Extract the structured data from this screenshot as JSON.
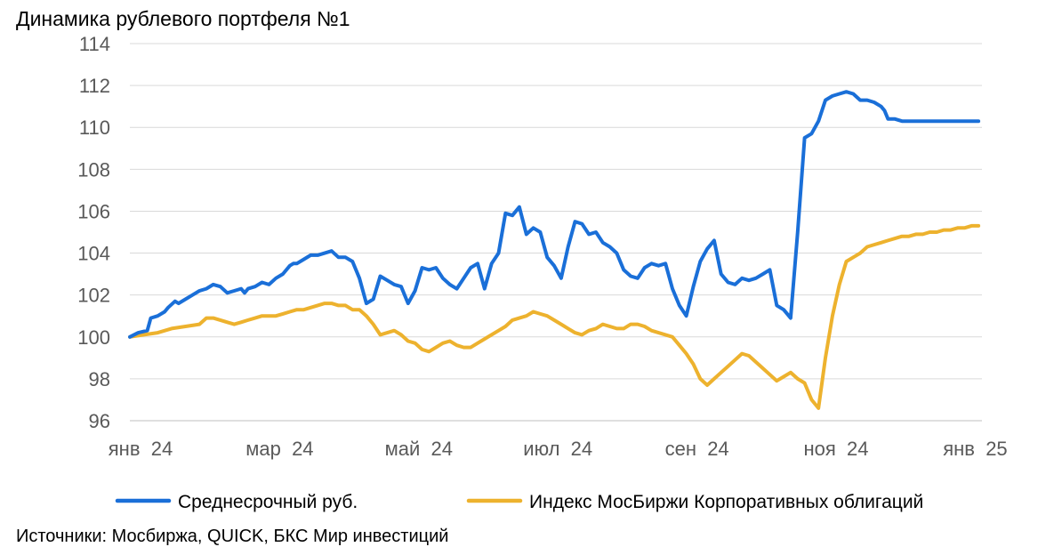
{
  "title": "Динамика рублевого портфеля №1",
  "source": "Источники: Мосбиржа, QUICK, БКС Мир инвестиций",
  "colors": {
    "series1": "#1a6fd8",
    "series2": "#edb22e",
    "grid": "#d9d9d9",
    "tick": "#595959"
  },
  "chart_data": {
    "type": "line",
    "title": "Динамика рублевого портфеля №1",
    "xlabel": "",
    "ylabel": "",
    "ylim": [
      96,
      114
    ],
    "yticks": [
      "96",
      "98",
      "100",
      "102",
      "104",
      "106",
      "108",
      "110",
      "112",
      "114"
    ],
    "xlim": [
      0,
      12.25
    ],
    "xticks": [
      {
        "x": 0,
        "label": "янв  24"
      },
      {
        "x": 2,
        "label": "мар  24"
      },
      {
        "x": 4,
        "label": "май  24"
      },
      {
        "x": 6,
        "label": "июл  24"
      },
      {
        "x": 8,
        "label": "сен  24"
      },
      {
        "x": 10,
        "label": "ноя  24"
      },
      {
        "x": 12,
        "label": "янв  25"
      }
    ],
    "grid": true,
    "legend": "bottom",
    "series": [
      {
        "name": "Среднесрочный руб.",
        "color": "#1a6fd8",
        "x": [
          0,
          0.12,
          0.25,
          0.3,
          0.4,
          0.5,
          0.55,
          0.65,
          0.7,
          0.8,
          0.9,
          1.0,
          1.1,
          1.2,
          1.3,
          1.4,
          1.5,
          1.6,
          1.65,
          1.7,
          1.8,
          1.9,
          2.0,
          2.1,
          2.2,
          2.3,
          2.35,
          2.4,
          2.5,
          2.6,
          2.7,
          2.8,
          2.9,
          3.0,
          3.1,
          3.2,
          3.3,
          3.4,
          3.5,
          3.6,
          3.7,
          3.8,
          3.9,
          4.0,
          4.1,
          4.2,
          4.3,
          4.4,
          4.5,
          4.6,
          4.7,
          4.8,
          4.9,
          5.0,
          5.1,
          5.2,
          5.3,
          5.4,
          5.5,
          5.6,
          5.7,
          5.8,
          5.9,
          6.0,
          6.1,
          6.2,
          6.3,
          6.4,
          6.5,
          6.6,
          6.7,
          6.8,
          6.9,
          7.0,
          7.1,
          7.2,
          7.3,
          7.4,
          7.5,
          7.6,
          7.7,
          7.8,
          7.9,
          8.0,
          8.1,
          8.2,
          8.3,
          8.4,
          8.5,
          8.6,
          8.7,
          8.8,
          8.9,
          9.0,
          9.1,
          9.2,
          9.3,
          9.4,
          9.5,
          9.6,
          9.7,
          9.8,
          9.9,
          10.0,
          10.1,
          10.2,
          10.3,
          10.4,
          10.5,
          10.6,
          10.7,
          10.8,
          10.85,
          10.9,
          11.0,
          11.1,
          11.2,
          11.3,
          11.4,
          11.5,
          11.6,
          11.7,
          11.8,
          11.9,
          12.0,
          12.1,
          12.2
        ],
        "values": [
          100.0,
          100.2,
          100.3,
          100.9,
          101.0,
          101.2,
          101.4,
          101.7,
          101.6,
          101.8,
          102.0,
          102.2,
          102.3,
          102.5,
          102.4,
          102.1,
          102.2,
          102.3,
          102.1,
          102.3,
          102.4,
          102.6,
          102.5,
          102.8,
          103.0,
          103.4,
          103.5,
          103.5,
          103.7,
          103.9,
          103.9,
          104.0,
          104.1,
          103.8,
          103.8,
          103.6,
          102.8,
          101.6,
          101.8,
          102.9,
          102.7,
          102.5,
          102.4,
          101.6,
          102.2,
          103.3,
          103.2,
          103.3,
          102.8,
          102.5,
          102.3,
          102.8,
          103.3,
          103.5,
          102.3,
          103.5,
          104.0,
          105.9,
          105.8,
          106.2,
          104.9,
          105.2,
          105.0,
          103.8,
          103.4,
          102.8,
          104.3,
          105.5,
          105.4,
          104.9,
          105.0,
          104.5,
          104.3,
          104.0,
          103.2,
          102.9,
          102.8,
          103.3,
          103.5,
          103.4,
          103.5,
          102.3,
          101.5,
          101.0,
          102.4,
          103.6,
          104.2,
          104.6,
          103.0,
          102.6,
          102.5,
          102.8,
          102.7,
          102.8,
          103.0,
          103.2,
          101.5,
          101.3,
          100.9,
          105.0,
          109.5,
          109.7,
          110.3,
          111.3,
          111.5,
          111.6,
          111.7,
          111.6,
          111.3,
          111.3,
          111.2,
          111.0,
          110.8,
          110.4,
          110.4,
          110.3,
          110.3,
          110.3,
          110.3,
          110.3,
          110.3,
          110.3,
          110.3,
          110.3,
          110.3,
          110.3,
          110.3
        ]
      },
      {
        "name": "Индекс МосБиржи Корпоративных облигаций",
        "color": "#edb22e",
        "x": [
          0,
          0.2,
          0.4,
          0.6,
          0.8,
          1.0,
          1.1,
          1.2,
          1.3,
          1.4,
          1.5,
          1.6,
          1.7,
          1.8,
          1.9,
          2.0,
          2.1,
          2.2,
          2.3,
          2.4,
          2.5,
          2.6,
          2.7,
          2.8,
          2.9,
          3.0,
          3.1,
          3.2,
          3.3,
          3.4,
          3.5,
          3.6,
          3.7,
          3.8,
          3.9,
          4.0,
          4.1,
          4.2,
          4.3,
          4.4,
          4.5,
          4.6,
          4.7,
          4.8,
          4.9,
          5.0,
          5.1,
          5.2,
          5.3,
          5.4,
          5.5,
          5.6,
          5.7,
          5.8,
          5.9,
          6.0,
          6.1,
          6.2,
          6.3,
          6.4,
          6.5,
          6.6,
          6.7,
          6.8,
          6.9,
          7.0,
          7.1,
          7.2,
          7.3,
          7.4,
          7.5,
          7.6,
          7.7,
          7.8,
          7.9,
          8.0,
          8.1,
          8.2,
          8.3,
          8.4,
          8.5,
          8.6,
          8.7,
          8.8,
          8.9,
          9.0,
          9.1,
          9.2,
          9.3,
          9.4,
          9.5,
          9.6,
          9.7,
          9.8,
          9.9,
          10.0,
          10.1,
          10.2,
          10.3,
          10.4,
          10.5,
          10.6,
          10.7,
          10.8,
          10.9,
          11.0,
          11.1,
          11.2,
          11.3,
          11.4,
          11.5,
          11.6,
          11.7,
          11.8,
          11.9,
          12.0,
          12.1,
          12.2
        ],
        "values": [
          100.0,
          100.1,
          100.2,
          100.4,
          100.5,
          100.6,
          100.9,
          100.9,
          100.8,
          100.7,
          100.6,
          100.7,
          100.8,
          100.9,
          101.0,
          101.0,
          101.0,
          101.1,
          101.2,
          101.3,
          101.3,
          101.4,
          101.5,
          101.6,
          101.6,
          101.5,
          101.5,
          101.3,
          101.3,
          101.0,
          100.6,
          100.1,
          100.2,
          100.3,
          100.1,
          99.8,
          99.7,
          99.4,
          99.3,
          99.5,
          99.7,
          99.8,
          99.6,
          99.5,
          99.5,
          99.7,
          99.9,
          100.1,
          100.3,
          100.5,
          100.8,
          100.9,
          101.0,
          101.2,
          101.1,
          101.0,
          100.8,
          100.6,
          100.4,
          100.2,
          100.1,
          100.3,
          100.4,
          100.6,
          100.5,
          100.4,
          100.4,
          100.6,
          100.6,
          100.5,
          100.3,
          100.2,
          100.1,
          100.0,
          99.6,
          99.2,
          98.7,
          98.0,
          97.7,
          98.0,
          98.3,
          98.6,
          98.9,
          99.2,
          99.1,
          98.8,
          98.5,
          98.2,
          97.9,
          98.1,
          98.3,
          98.0,
          97.8,
          97.0,
          96.6,
          99.0,
          101.0,
          102.5,
          103.6,
          103.8,
          104.0,
          104.3,
          104.4,
          104.5,
          104.6,
          104.7,
          104.8,
          104.8,
          104.9,
          104.9,
          105.0,
          105.0,
          105.1,
          105.1,
          105.2,
          105.2,
          105.3,
          105.3
        ]
      }
    ]
  }
}
